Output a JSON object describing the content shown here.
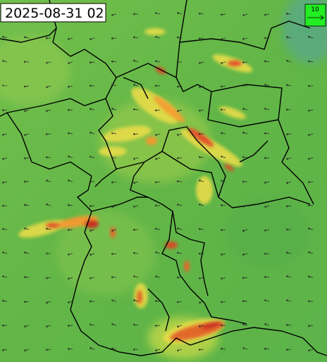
{
  "timestamp": "2025-08-31 02",
  "legend": {
    "label": "10"
  }
}
